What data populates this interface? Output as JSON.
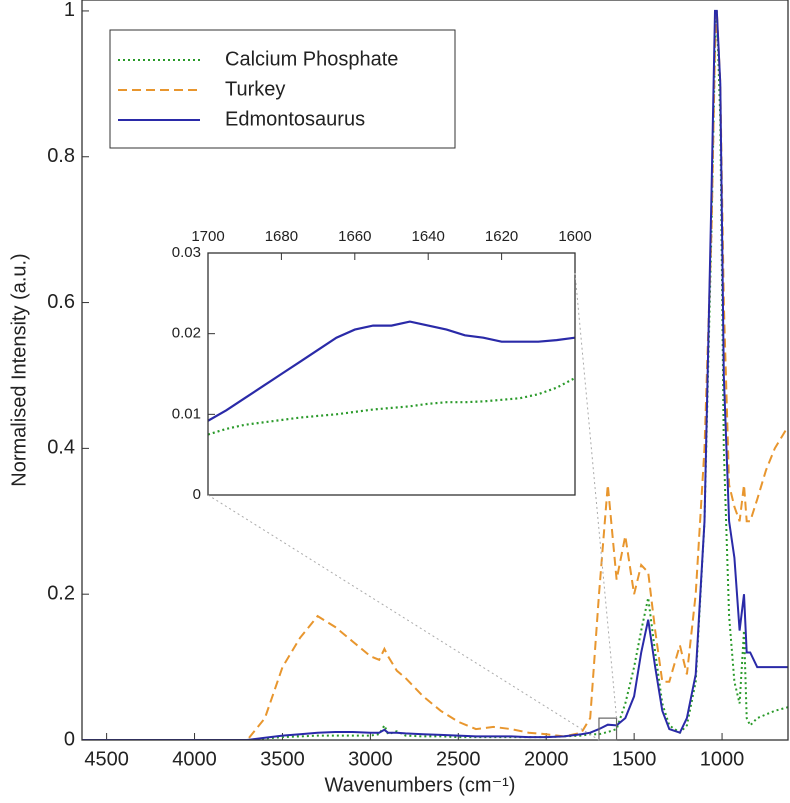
{
  "chart_data": [
    {
      "type": "line",
      "x_label": "Wavenumbers (cm⁻¹)",
      "y_label": "Normalised Intensity (a.u.)",
      "xlim": [
        4640,
        625
      ],
      "ylim": [
        0,
        1.015
      ],
      "xticks": [
        4500,
        4000,
        3500,
        3000,
        2500,
        2000,
        1500,
        1000
      ],
      "yticks": [
        0,
        0.2,
        0.4,
        0.6,
        0.8,
        1
      ],
      "legend": "upper left",
      "x": [
        4640,
        4000,
        3700,
        3600,
        3500,
        3400,
        3300,
        3200,
        3100,
        3000,
        2950,
        2920,
        2900,
        2850,
        2800,
        2700,
        2600,
        2500,
        2400,
        2300,
        2200,
        2100,
        2000,
        1900,
        1800,
        1750,
        1700,
        1650,
        1600,
        1550,
        1500,
        1460,
        1420,
        1380,
        1340,
        1300,
        1240,
        1200,
        1150,
        1100,
        1060,
        1040,
        1030,
        1010,
        990,
        960,
        930,
        900,
        875,
        860,
        840,
        800,
        750,
        700,
        625
      ],
      "series": [
        {
          "name": "Calcium Phosphate",
          "color": "#2a9a2a",
          "dash": "dotted",
          "values": [
            0,
            0,
            0,
            0.002,
            0.004,
            0.005,
            0.006,
            0.006,
            0.006,
            0.006,
            0.008,
            0.02,
            0.008,
            0.012,
            0.006,
            0.005,
            0.005,
            0.004,
            0.004,
            0.004,
            0.004,
            0.004,
            0.004,
            0.005,
            0.006,
            0.008,
            0.008,
            0.011,
            0.015,
            0.05,
            0.1,
            0.15,
            0.195,
            0.12,
            0.05,
            0.02,
            0.01,
            0.02,
            0.08,
            0.3,
            0.7,
            0.95,
            1.0,
            0.85,
            0.4,
            0.17,
            0.08,
            0.05,
            0.15,
            0.03,
            0.02,
            0.03,
            0.035,
            0.04,
            0.045
          ]
        },
        {
          "name": "Turkey",
          "color": "#e8962e",
          "dash": "dashed",
          "values": [
            0,
            0,
            0,
            0.03,
            0.1,
            0.14,
            0.17,
            0.155,
            0.135,
            0.115,
            0.11,
            0.125,
            0.115,
            0.095,
            0.085,
            0.06,
            0.04,
            0.025,
            0.015,
            0.018,
            0.015,
            0.01,
            0.008,
            0.005,
            0.01,
            0.03,
            0.2,
            0.35,
            0.22,
            0.28,
            0.2,
            0.24,
            0.23,
            0.15,
            0.08,
            0.08,
            0.13,
            0.09,
            0.2,
            0.4,
            0.7,
            0.95,
            1.0,
            0.9,
            0.6,
            0.35,
            0.32,
            0.3,
            0.35,
            0.3,
            0.3,
            0.33,
            0.37,
            0.4,
            0.43
          ]
        },
        {
          "name": "Edmontosaurus",
          "color": "#2a2aa8",
          "dash": "solid",
          "values": [
            0,
            0,
            0,
            0.003,
            0.006,
            0.008,
            0.01,
            0.011,
            0.011,
            0.01,
            0.01,
            0.014,
            0.01,
            0.01,
            0.009,
            0.008,
            0.007,
            0.006,
            0.005,
            0.005,
            0.005,
            0.004,
            0.004,
            0.005,
            0.008,
            0.01,
            0.015,
            0.021,
            0.02,
            0.03,
            0.06,
            0.12,
            0.165,
            0.1,
            0.04,
            0.015,
            0.01,
            0.03,
            0.09,
            0.3,
            0.75,
            1.0,
            1.0,
            0.9,
            0.5,
            0.3,
            0.25,
            0.15,
            0.2,
            0.12,
            0.12,
            0.1,
            0.1,
            0.1,
            0.1
          ]
        }
      ]
    },
    {
      "type": "line",
      "xlim": [
        1700,
        1600
      ],
      "ylim": [
        0,
        0.03
      ],
      "xticks": [
        1700,
        1680,
        1660,
        1640,
        1620,
        1600
      ],
      "yticks": [
        0,
        0.01,
        0.02,
        0.03
      ],
      "x": [
        1700,
        1695,
        1690,
        1685,
        1680,
        1675,
        1670,
        1665,
        1660,
        1655,
        1650,
        1645,
        1640,
        1635,
        1630,
        1625,
        1620,
        1615,
        1610,
        1605,
        1600
      ],
      "series": [
        {
          "color": "#2a2aa8",
          "dash": "solid",
          "values": [
            0.0092,
            0.0105,
            0.012,
            0.0135,
            0.015,
            0.0165,
            0.018,
            0.0195,
            0.0205,
            0.021,
            0.021,
            0.0215,
            0.021,
            0.0205,
            0.0198,
            0.0195,
            0.019,
            0.019,
            0.019,
            0.0192,
            0.0195
          ]
        },
        {
          "color": "#2a9a2a",
          "dash": "dotted",
          "values": [
            0.0075,
            0.0082,
            0.0087,
            0.009,
            0.0093,
            0.0096,
            0.0098,
            0.01,
            0.0103,
            0.0106,
            0.0108,
            0.011,
            0.0113,
            0.0115,
            0.0115,
            0.0116,
            0.0118,
            0.012,
            0.0125,
            0.0133,
            0.0145
          ]
        }
      ]
    }
  ]
}
